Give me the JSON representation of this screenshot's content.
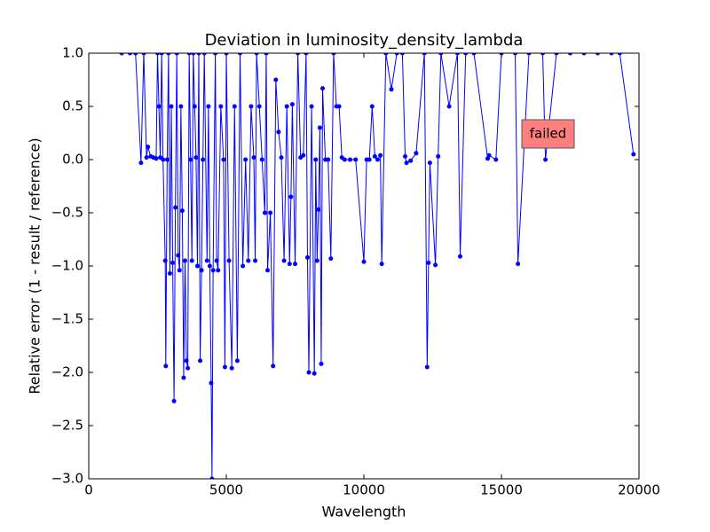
{
  "chart_data": {
    "type": "line",
    "title": "Deviation in luminosity_density_lambda",
    "xlabel": "Wavelength",
    "ylabel": "Relative error (1 - result / reference)",
    "annotation": "failed",
    "color": "#0000ff",
    "xlim": [
      0,
      20000
    ],
    "xticks": [
      0,
      5000,
      10000,
      15000,
      20000
    ],
    "ylim": [
      -3,
      1
    ],
    "yticks": [
      {
        "value": -3,
        "label": "−3.0"
      },
      {
        "value": -2.5,
        "label": "−2.5"
      },
      {
        "value": -2,
        "label": "−2.0"
      },
      {
        "value": -1.5,
        "label": "−1.5"
      },
      {
        "value": -1,
        "label": "−1.0"
      },
      {
        "value": -0.5,
        "label": "−0.5"
      },
      {
        "value": 0,
        "label": "0.0"
      },
      {
        "value": 0.5,
        "label": "0.5"
      },
      {
        "value": 1,
        "label": "1.0"
      }
    ],
    "x": [
      1200,
      1500,
      1700,
      1900,
      2000,
      2100,
      2150,
      2250,
      2350,
      2450,
      2500,
      2550,
      2600,
      2650,
      2700,
      2780,
      2800,
      2850,
      2900,
      2950,
      3000,
      3050,
      3100,
      3150,
      3200,
      3250,
      3300,
      3350,
      3400,
      3450,
      3500,
      3550,
      3600,
      3650,
      3700,
      3750,
      3800,
      3850,
      3900,
      3950,
      4000,
      4050,
      4100,
      4150,
      4200,
      4300,
      4350,
      4400,
      4450,
      4480,
      4520,
      4600,
      4650,
      4700,
      4800,
      4900,
      4950,
      5000,
      5100,
      5200,
      5300,
      5400,
      5500,
      5600,
      5700,
      5800,
      5900,
      6000,
      6050,
      6100,
      6200,
      6300,
      6400,
      6450,
      6500,
      6600,
      6700,
      6800,
      6900,
      7000,
      7100,
      7200,
      7300,
      7350,
      7400,
      7500,
      7600,
      7700,
      7800,
      7900,
      7950,
      8000,
      8100,
      8200,
      8250,
      8300,
      8350,
      8400,
      8450,
      8500,
      8600,
      8700,
      8800,
      8900,
      9000,
      9100,
      9200,
      9300,
      9500,
      9700,
      10000,
      10100,
      10200,
      10300,
      10400,
      10500,
      10600,
      10650,
      10800,
      11000,
      11200,
      11400,
      11500,
      11550,
      11700,
      11900,
      12200,
      12300,
      12350,
      12400,
      12600,
      12700,
      12800,
      13100,
      13400,
      13500,
      13700,
      14000,
      14500,
      14550,
      14800,
      15000,
      15500,
      15600,
      16000,
      16500,
      16600,
      17000,
      17500,
      18000,
      18500,
      19000,
      19300,
      19800
    ],
    "values": [
      1,
      1,
      1,
      -0.03,
      1,
      0.02,
      0.12,
      0.03,
      0.02,
      0.01,
      1,
      0.5,
      0.02,
      1,
      0,
      -0.95,
      -1.94,
      0,
      1,
      -1.07,
      0.5,
      -0.97,
      -2.27,
      -0.45,
      1,
      -0.9,
      -1.04,
      0.5,
      -0.48,
      -2.05,
      -0.95,
      -1.89,
      -1.96,
      1,
      0,
      -0.95,
      1,
      0.5,
      0.02,
      -1,
      1,
      -1.89,
      -1.04,
      0,
      1,
      -0.95,
      0.5,
      -1,
      -2.1,
      -3,
      -1.04,
      1,
      -0.95,
      -1.04,
      0.5,
      0,
      -1.95,
      1,
      -0.95,
      -1.96,
      0.5,
      -1.89,
      1,
      -1,
      0,
      -0.95,
      0.5,
      0.02,
      -0.95,
      1,
      0.5,
      0,
      -0.5,
      1,
      -1.04,
      -0.5,
      -1.94,
      0.75,
      0.26,
      0.02,
      -0.95,
      0.5,
      -0.98,
      -0.35,
      0.52,
      -0.98,
      1,
      0.02,
      0.04,
      1,
      -0.92,
      -2,
      0.5,
      -2.01,
      0,
      -0.95,
      -0.47,
      0.3,
      -1.92,
      0.67,
      0,
      0,
      -0.93,
      1,
      0.5,
      0.5,
      0.02,
      0,
      0,
      0,
      -0.96,
      0,
      0,
      0.5,
      0.03,
      0,
      0.04,
      -0.98,
      1,
      0.66,
      1,
      1,
      0.03,
      -0.03,
      -0.01,
      0.06,
      1,
      -1.95,
      -0.97,
      -0.03,
      -0.99,
      0.03,
      1,
      0.5,
      1,
      -0.91,
      1,
      1,
      0.01,
      0.04,
      0,
      1,
      1,
      -0.98,
      1,
      1,
      0,
      1,
      1,
      1,
      1,
      1,
      1,
      0.05
    ]
  }
}
